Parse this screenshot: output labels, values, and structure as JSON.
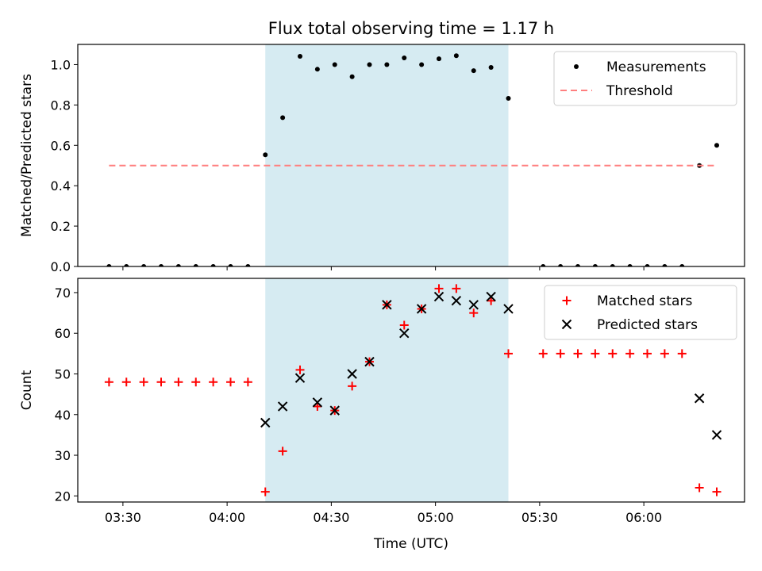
{
  "figure": {
    "title": "Flux total observing time = 1.17 h",
    "xlabel": "Time (UTC)",
    "x_tick_labels": [
      "03:30",
      "04:00",
      "04:30",
      "05:00",
      "05:30",
      "06:00"
    ]
  },
  "colors": {
    "shade": "#add8e6",
    "measurements": "#000000",
    "threshold": "#ff7f7f",
    "matched": "#ff0000",
    "predicted": "#000000"
  },
  "chart_data": [
    {
      "type": "scatter",
      "ylabel": "Matched/Predicted stars",
      "ylim": [
        0,
        1.1
      ],
      "xlim": [
        "03:17",
        "06:29"
      ],
      "yticks": [
        0.0,
        0.2,
        0.4,
        0.6,
        0.8,
        1.0
      ],
      "y_tick_labels": [
        "0.0",
        "0.2",
        "0.4",
        "0.6",
        "0.8",
        "1.0"
      ],
      "shaded_range": [
        "04:11",
        "05:21"
      ],
      "legend_position": "top-right",
      "series": [
        {
          "name": "Measurements",
          "marker": "dot",
          "points": [
            [
              "03:26",
              0.0
            ],
            [
              "03:31",
              0.0
            ],
            [
              "03:36",
              0.0
            ],
            [
              "03:41",
              0.0
            ],
            [
              "03:46",
              0.0
            ],
            [
              "03:51",
              0.0
            ],
            [
              "03:56",
              0.0
            ],
            [
              "04:01",
              0.0
            ],
            [
              "04:06",
              0.0
            ],
            [
              "04:11",
              0.553
            ],
            [
              "04:16",
              0.737
            ],
            [
              "04:21",
              1.041
            ],
            [
              "04:26",
              0.977
            ],
            [
              "04:31",
              1.0
            ],
            [
              "04:36",
              0.94
            ],
            [
              "04:41",
              1.0
            ],
            [
              "04:46",
              1.0
            ],
            [
              "04:51",
              1.033
            ],
            [
              "04:56",
              1.0
            ],
            [
              "05:01",
              1.029
            ],
            [
              "05:06",
              1.044
            ],
            [
              "05:11",
              0.97
            ],
            [
              "05:16",
              0.986
            ],
            [
              "05:21",
              0.833
            ],
            [
              "05:31",
              0.0
            ],
            [
              "05:36",
              0.0
            ],
            [
              "05:41",
              0.0
            ],
            [
              "05:46",
              0.0
            ],
            [
              "05:51",
              0.0
            ],
            [
              "05:56",
              0.0
            ],
            [
              "06:01",
              0.0
            ],
            [
              "06:06",
              0.0
            ],
            [
              "06:11",
              0.0
            ],
            [
              "06:16",
              0.5
            ],
            [
              "06:21",
              0.6
            ]
          ]
        },
        {
          "name": "Threshold",
          "marker": "dashed-line",
          "points": [
            [
              "03:26",
              0.5
            ],
            [
              "06:21",
              0.5
            ]
          ]
        }
      ]
    },
    {
      "type": "scatter",
      "ylabel": "Count",
      "ylim": [
        18.5,
        73.5
      ],
      "xlim": [
        "03:17",
        "06:29"
      ],
      "yticks": [
        20,
        30,
        40,
        50,
        60,
        70
      ],
      "y_tick_labels": [
        "20",
        "30",
        "40",
        "50",
        "60",
        "70"
      ],
      "shaded_range": [
        "04:11",
        "05:21"
      ],
      "legend_position": "top-right",
      "series": [
        {
          "name": "Matched stars",
          "marker": "plus",
          "points": [
            [
              "03:26",
              48
            ],
            [
              "03:31",
              48
            ],
            [
              "03:36",
              48
            ],
            [
              "03:41",
              48
            ],
            [
              "03:46",
              48
            ],
            [
              "03:51",
              48
            ],
            [
              "03:56",
              48
            ],
            [
              "04:01",
              48
            ],
            [
              "04:06",
              48
            ],
            [
              "04:11",
              21
            ],
            [
              "04:16",
              31
            ],
            [
              "04:21",
              51
            ],
            [
              "04:26",
              42
            ],
            [
              "04:31",
              41
            ],
            [
              "04:36",
              47
            ],
            [
              "04:41",
              53
            ],
            [
              "04:46",
              67
            ],
            [
              "04:51",
              62
            ],
            [
              "04:56",
              66
            ],
            [
              "05:01",
              71
            ],
            [
              "05:06",
              71
            ],
            [
              "05:11",
              65
            ],
            [
              "05:16",
              68
            ],
            [
              "05:21",
              55
            ],
            [
              "05:31",
              55
            ],
            [
              "05:36",
              55
            ],
            [
              "05:41",
              55
            ],
            [
              "05:46",
              55
            ],
            [
              "05:51",
              55
            ],
            [
              "05:56",
              55
            ],
            [
              "06:01",
              55
            ],
            [
              "06:06",
              55
            ],
            [
              "06:11",
              55
            ],
            [
              "06:16",
              22
            ],
            [
              "06:21",
              21
            ]
          ]
        },
        {
          "name": "Predicted stars",
          "marker": "x",
          "points": [
            [
              "04:11",
              38
            ],
            [
              "04:16",
              42
            ],
            [
              "04:21",
              49
            ],
            [
              "04:26",
              43
            ],
            [
              "04:31",
              41
            ],
            [
              "04:36",
              50
            ],
            [
              "04:41",
              53
            ],
            [
              "04:46",
              67
            ],
            [
              "04:51",
              60
            ],
            [
              "04:56",
              66
            ],
            [
              "05:01",
              69
            ],
            [
              "05:06",
              68
            ],
            [
              "05:11",
              67
            ],
            [
              "05:16",
              69
            ],
            [
              "05:21",
              66
            ],
            [
              "06:16",
              44
            ],
            [
              "06:21",
              35
            ]
          ]
        }
      ]
    }
  ]
}
